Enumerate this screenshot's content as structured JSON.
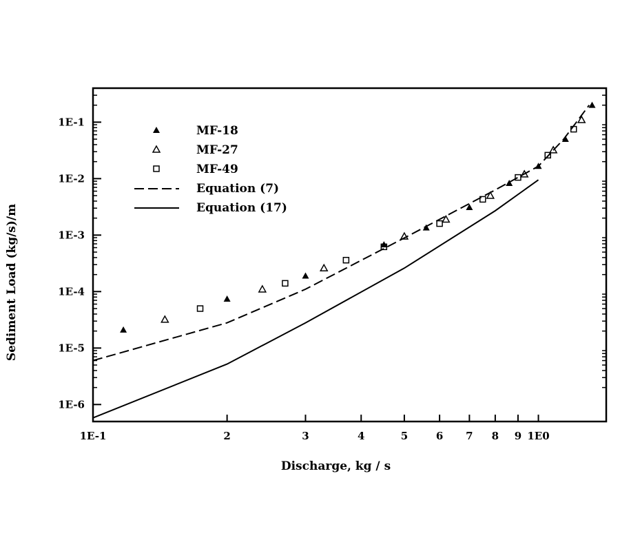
{
  "chart_data": {
    "type": "scatter",
    "title": "",
    "xlabel": "Discharge, kg / s",
    "ylabel": "Sediment Load (kg/s)/m",
    "xscale": "log",
    "yscale": "log",
    "xlim": [
      0.1,
      1.42
    ],
    "ylim": [
      5e-07,
      0.4
    ],
    "grid": false,
    "legend_position": "top-left",
    "x_ticks": [
      {
        "value": 0.1,
        "label": "1E-1"
      },
      {
        "value": 0.2,
        "label": "2"
      },
      {
        "value": 0.3,
        "label": "3"
      },
      {
        "value": 0.4,
        "label": "4"
      },
      {
        "value": 0.5,
        "label": "5"
      },
      {
        "value": 0.6,
        "label": "6"
      },
      {
        "value": 0.7,
        "label": "7"
      },
      {
        "value": 0.8,
        "label": "8"
      },
      {
        "value": 0.9,
        "label": "9"
      },
      {
        "value": 1.0,
        "label": "1E0"
      }
    ],
    "y_ticks": [
      {
        "value": 0.1,
        "label": "1E-1"
      },
      {
        "value": 0.01,
        "label": "1E-2"
      },
      {
        "value": 0.001,
        "label": "1E-3"
      },
      {
        "value": 0.0001,
        "label": "1E-4"
      },
      {
        "value": 1e-05,
        "label": "1E-5"
      },
      {
        "value": 1e-06,
        "label": "1E-6"
      }
    ],
    "series": [
      {
        "name": "MF-18",
        "kind": "points",
        "marker": "filled-triangle",
        "x": [
          0.117,
          0.2,
          0.3,
          0.45,
          0.56,
          0.7,
          0.86,
          1.0,
          1.15,
          1.32
        ],
        "y": [
          2.1e-05,
          7.4e-05,
          0.00019,
          0.00068,
          0.00135,
          0.0031,
          0.0083,
          0.0166,
          0.05,
          0.2
        ]
      },
      {
        "name": "MF-27",
        "kind": "points",
        "marker": "open-triangle",
        "x": [
          0.145,
          0.24,
          0.33,
          0.5,
          0.62,
          0.78,
          0.93,
          1.08,
          1.25
        ],
        "y": [
          3.2e-05,
          0.00011,
          0.00026,
          0.00095,
          0.0019,
          0.005,
          0.012,
          0.032,
          0.11
        ]
      },
      {
        "name": "MF-49",
        "kind": "points",
        "marker": "open-square",
        "x": [
          0.174,
          0.27,
          0.37,
          0.45,
          0.6,
          0.75,
          0.9,
          1.05,
          1.2
        ],
        "y": [
          5e-05,
          0.00014,
          0.00036,
          0.00062,
          0.0016,
          0.0043,
          0.0105,
          0.026,
          0.075
        ]
      },
      {
        "name": "Equation (7)",
        "kind": "line",
        "dash": true,
        "x": [
          0.1,
          0.2,
          0.3,
          0.5,
          0.8,
          1.0,
          1.14,
          1.3
        ],
        "y": [
          6e-06,
          2.8e-05,
          0.00011,
          0.00089,
          0.0063,
          0.0166,
          0.05,
          0.2
        ]
      },
      {
        "name": "Equation (17)",
        "kind": "line",
        "dash": false,
        "x": [
          0.1,
          0.2,
          0.3,
          0.5,
          0.8,
          1.0
        ],
        "y": [
          5.8e-07,
          5.2e-06,
          2.8e-05,
          0.00026,
          0.0027,
          0.0095
        ]
      }
    ]
  }
}
